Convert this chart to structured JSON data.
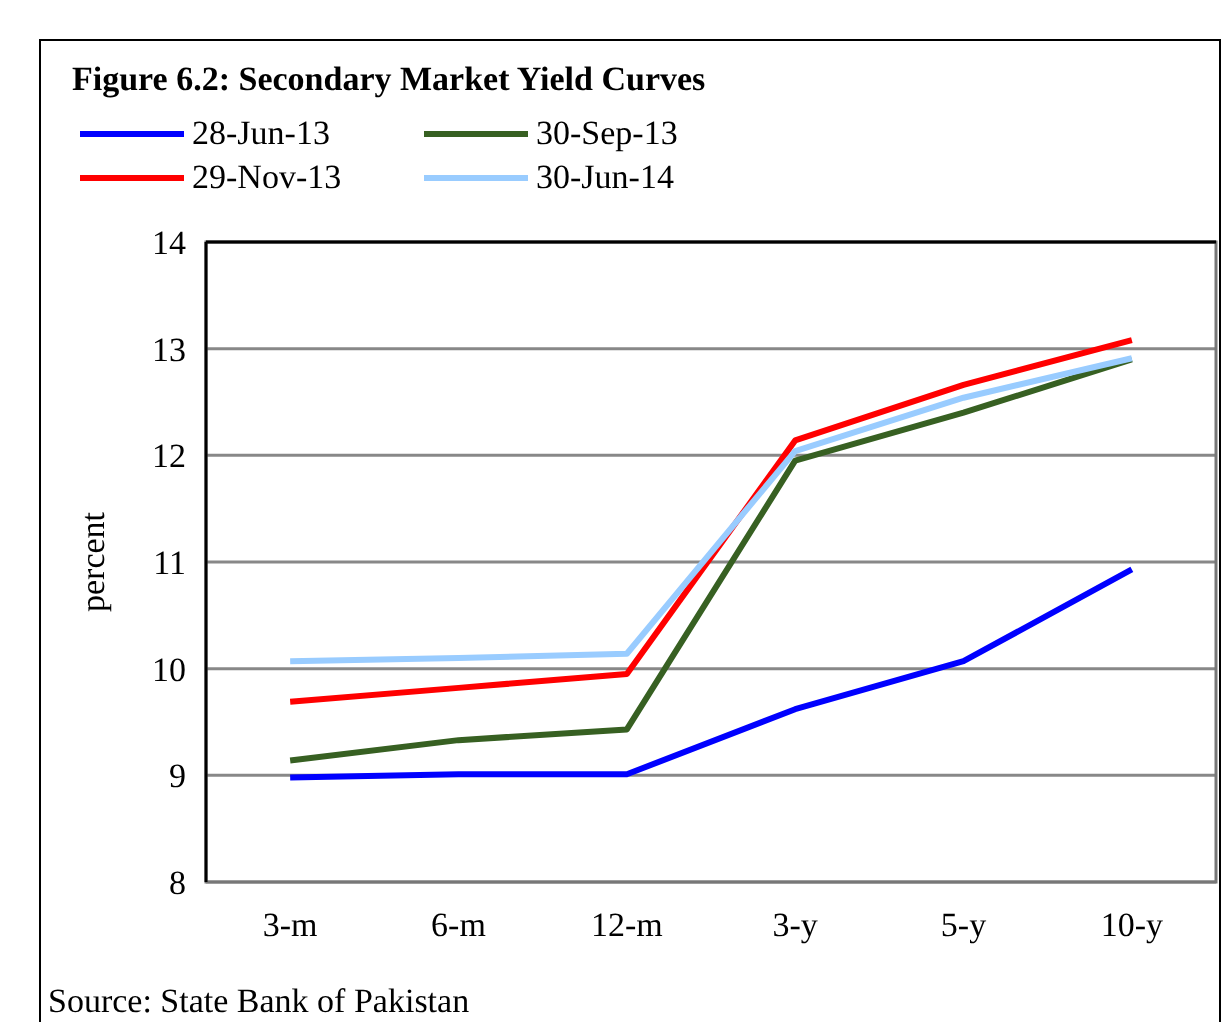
{
  "chart_data": {
    "type": "line",
    "title": "Figure 6.2: Secondary Market Yield  Curves",
    "ylabel": "percent",
    "categories": [
      "3-m",
      "6-m",
      "12-m",
      "3-y",
      "5-y",
      "10-y"
    ],
    "series": [
      {
        "name": "28-Jun-13",
        "color": "#0000ff",
        "values": [
          8.98,
          9.01,
          9.01,
          9.62,
          10.07,
          10.93
        ]
      },
      {
        "name": "30-Sep-13",
        "color": "#376022",
        "values": [
          9.14,
          9.33,
          9.43,
          11.95,
          12.4,
          12.9
        ]
      },
      {
        "name": "29-Nov-13",
        "color": "#ff0000",
        "values": [
          9.69,
          9.82,
          9.95,
          12.14,
          12.66,
          13.08
        ]
      },
      {
        "name": "30-Jun-14",
        "color": "#99ccff",
        "values": [
          10.07,
          10.1,
          10.14,
          12.04,
          12.54,
          12.91
        ]
      }
    ],
    "ylim": [
      8,
      14
    ],
    "yticks": [
      8,
      9,
      10,
      11,
      12,
      13,
      14
    ],
    "grid": "y",
    "legend": "top",
    "marker": "none",
    "line_style": "solid",
    "annotations": [
      "Source: State Bank of Pakistan"
    ]
  }
}
